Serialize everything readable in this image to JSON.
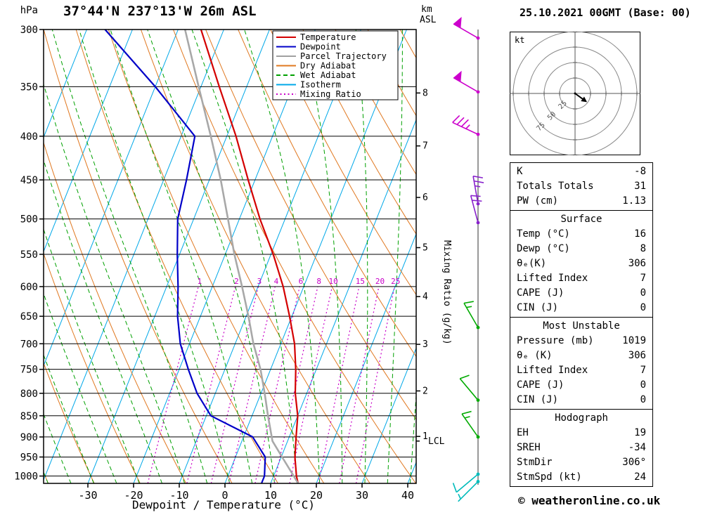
{
  "header": {
    "station": "37°44'N 237°13'W 26m ASL",
    "datetime": "25.10.2021 00GMT (Base: 00)",
    "pressure_unit": "hPa",
    "km_label": "km",
    "asl_label": "ASL"
  },
  "axes": {
    "xlabel": "Dewpoint / Temperature (°C)",
    "x_ticks_degC": [
      -30,
      -20,
      -10,
      0,
      10,
      20,
      30,
      40
    ],
    "pressure_ticks_hPa": [
      300,
      350,
      400,
      450,
      500,
      550,
      600,
      650,
      700,
      750,
      800,
      850,
      900,
      950,
      1000
    ],
    "km_asl_ticks": [
      1,
      2,
      3,
      4,
      5,
      6,
      7,
      8
    ],
    "lcl_label": "LCL",
    "mixing_ratio_axis_label": "Mixing Ratio (g/kg)"
  },
  "legend": [
    {
      "label": "Temperature",
      "color": "#d40000",
      "style": "solid"
    },
    {
      "label": "Dewpoint",
      "color": "#0000c8",
      "style": "solid"
    },
    {
      "label": "Parcel Trajectory",
      "color": "#a0a0a0",
      "style": "solid"
    },
    {
      "label": "Dry Adiabat",
      "color": "#e07820",
      "style": "solid"
    },
    {
      "label": "Wet Adiabat",
      "color": "#00a000",
      "style": "dashed"
    },
    {
      "label": "Isotherm",
      "color": "#00a8e8",
      "style": "solid"
    },
    {
      "label": "Mixing Ratio",
      "color": "#c800c8",
      "style": "dotted"
    }
  ],
  "chart_data": {
    "type": "line",
    "subtype": "skew-t-log-p",
    "title": "37°44'N 237°13'W 26m ASL",
    "xlabel": "Dewpoint / Temperature (°C)",
    "pressure_range_hPa": [
      300,
      1020
    ],
    "lcl_pressure_hPa": 910,
    "series": [
      {
        "name": "Temperature",
        "color": "#d40000",
        "width": 2.2,
        "points_p_T": [
          [
            1020,
            16
          ],
          [
            1000,
            15
          ],
          [
            950,
            13
          ],
          [
            900,
            11.5
          ],
          [
            850,
            10
          ],
          [
            800,
            7.5
          ],
          [
            750,
            5.5
          ],
          [
            700,
            3
          ],
          [
            650,
            -0.5
          ],
          [
            600,
            -4.5
          ],
          [
            550,
            -9.5
          ],
          [
            500,
            -15.5
          ],
          [
            450,
            -21.5
          ],
          [
            400,
            -28
          ],
          [
            350,
            -36
          ],
          [
            300,
            -45
          ]
        ]
      },
      {
        "name": "Dewpoint",
        "color": "#0000c8",
        "width": 2.2,
        "points_p_T": [
          [
            1020,
            8
          ],
          [
            1000,
            8
          ],
          [
            950,
            6.5
          ],
          [
            900,
            2
          ],
          [
            850,
            -9
          ],
          [
            800,
            -14
          ],
          [
            750,
            -18
          ],
          [
            700,
            -22
          ],
          [
            650,
            -25
          ],
          [
            600,
            -27.5
          ],
          [
            550,
            -30.5
          ],
          [
            500,
            -33.5
          ],
          [
            450,
            -35
          ],
          [
            400,
            -37
          ],
          [
            350,
            -50
          ],
          [
            300,
            -66
          ]
        ]
      },
      {
        "name": "Parcel Trajectory",
        "color": "#a8a8a8",
        "width": 2.6,
        "points_p_T": [
          [
            1020,
            16
          ],
          [
            1000,
            14.4
          ],
          [
            950,
            10.2
          ],
          [
            910,
            6.7
          ],
          [
            850,
            3.5
          ],
          [
            800,
            0.8
          ],
          [
            750,
            -2.2
          ],
          [
            700,
            -6
          ],
          [
            650,
            -9.5
          ],
          [
            600,
            -13.5
          ],
          [
            550,
            -18
          ],
          [
            500,
            -22.5
          ],
          [
            450,
            -27.5
          ],
          [
            400,
            -33.5
          ],
          [
            350,
            -40.5
          ],
          [
            300,
            -48.5
          ]
        ]
      }
    ],
    "background": {
      "isotherm": {
        "color": "#00a8e8",
        "start": -100,
        "end": 40,
        "step": 10
      },
      "dry_adiabat": {
        "color": "#e07820",
        "start": -40,
        "end": 110,
        "step": 10
      },
      "wet_adiabat": {
        "color": "#00a000",
        "start": -50,
        "end": 40,
        "step": 5
      },
      "mixing_ratio": {
        "color": "#c800c8",
        "values": [
          1,
          2,
          3,
          4,
          6,
          8,
          10,
          15,
          20,
          25
        ],
        "label_pressure_hPa": 600
      }
    }
  },
  "wind_barbs": [
    {
      "pressure": 307,
      "speed_kt": 50,
      "dir_deg": 300,
      "color": "#cc00cc"
    },
    {
      "pressure": 355,
      "speed_kt": 50,
      "dir_deg": 300,
      "color": "#cc00cc"
    },
    {
      "pressure": 398,
      "speed_kt": 35,
      "dir_deg": 295,
      "color": "#cc00cc"
    },
    {
      "pressure": 480,
      "speed_kt": 25,
      "dir_deg": 350,
      "color": "#8822cc"
    },
    {
      "pressure": 505,
      "speed_kt": 20,
      "dir_deg": 345,
      "color": "#8822cc"
    },
    {
      "pressure": 670,
      "speed_kt": 15,
      "dir_deg": 330,
      "color": "#00aa00"
    },
    {
      "pressure": 815,
      "speed_kt": 10,
      "dir_deg": 320,
      "color": "#00aa00"
    },
    {
      "pressure": 900,
      "speed_kt": 15,
      "dir_deg": 325,
      "color": "#00aa00"
    },
    {
      "pressure": 995,
      "speed_kt": 10,
      "dir_deg": 230,
      "color": "#00bbbb"
    },
    {
      "pressure": 1015,
      "speed_kt": 8,
      "dir_deg": 225,
      "color": "#00bbbb"
    }
  ],
  "hodograph": {
    "unit_label": "kt",
    "ring_step_kt": 25,
    "rings_kt": [
      25,
      50,
      75,
      100
    ],
    "ring_labels": [
      "25",
      "50",
      "75"
    ],
    "storm_dir_deg": 306,
    "storm_speed_kt": 24
  },
  "table": {
    "sections": [
      {
        "title": null,
        "rows": [
          [
            "K",
            "-8"
          ],
          [
            "Totals Totals",
            "31"
          ],
          [
            "PW (cm)",
            "1.13"
          ]
        ]
      },
      {
        "title": "Surface",
        "rows": [
          [
            "Temp (°C)",
            "16"
          ],
          [
            "Dewp (°C)",
            "8"
          ],
          [
            "θₑ(K)",
            "306"
          ],
          [
            "Lifted Index",
            "7"
          ],
          [
            "CAPE (J)",
            "0"
          ],
          [
            "CIN (J)",
            "0"
          ]
        ]
      },
      {
        "title": "Most Unstable",
        "rows": [
          [
            "Pressure (mb)",
            "1019"
          ],
          [
            "θₑ (K)",
            "306"
          ],
          [
            "Lifted Index",
            "7"
          ],
          [
            "CAPE (J)",
            "0"
          ],
          [
            "CIN (J)",
            "0"
          ]
        ]
      },
      {
        "title": "Hodograph",
        "rows": [
          [
            "EH",
            "19"
          ],
          [
            "SREH",
            "-34"
          ],
          [
            "StmDir",
            "306°"
          ],
          [
            "StmSpd (kt)",
            "24"
          ]
        ]
      }
    ]
  },
  "footer": {
    "copyright": "© weatheronline.co.uk"
  }
}
